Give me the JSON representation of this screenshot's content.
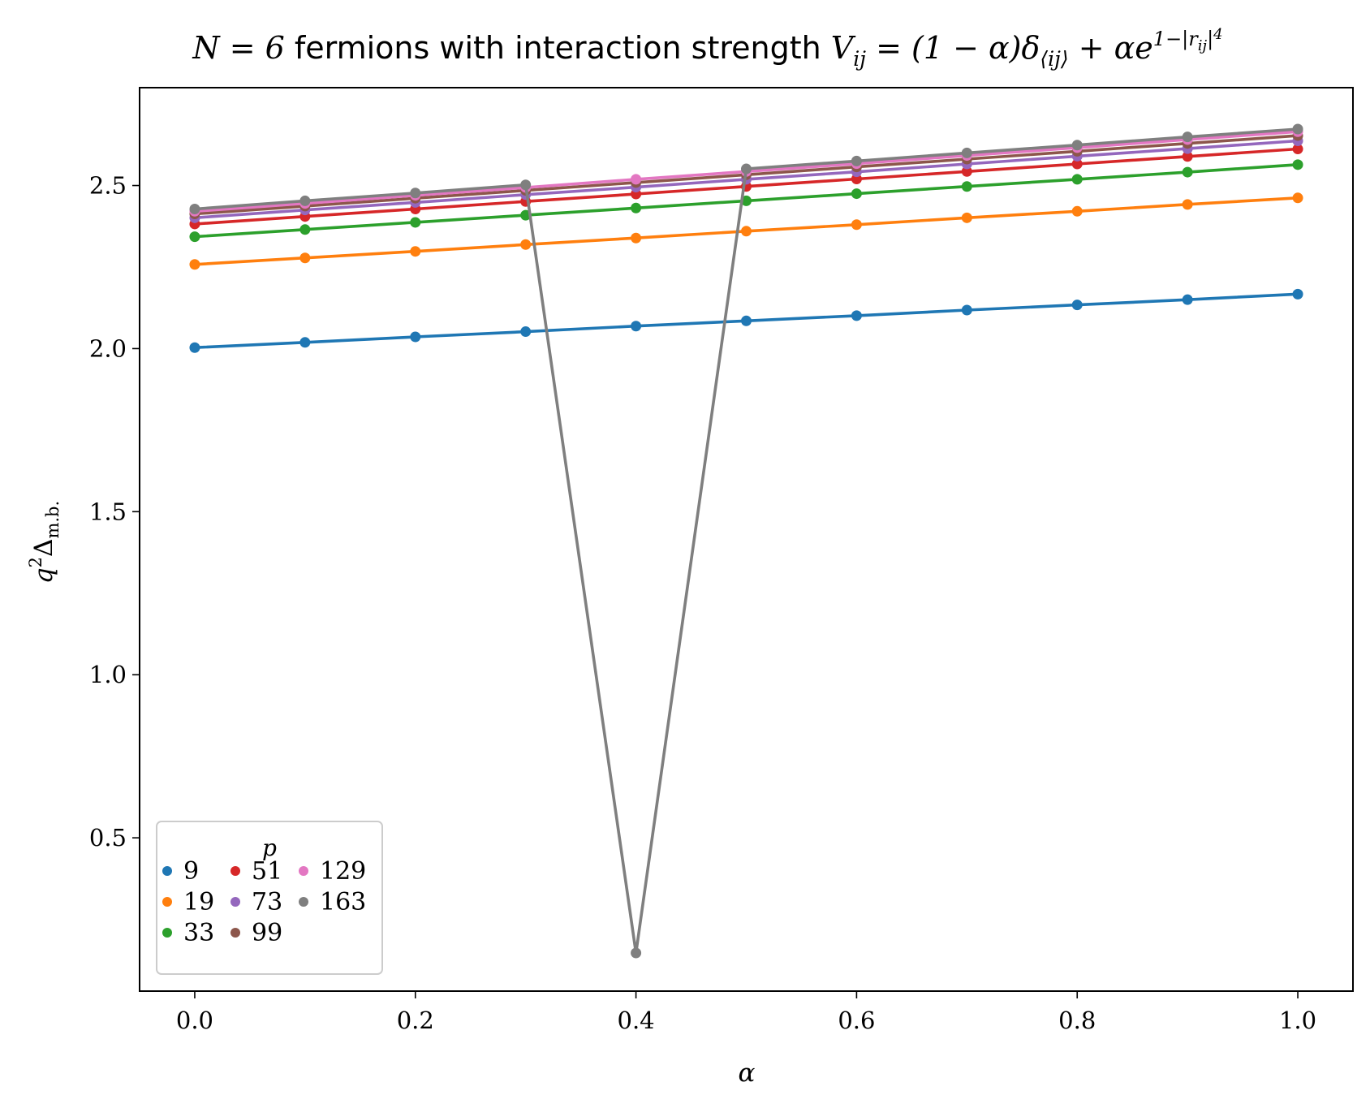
{
  "chart_data": {
    "type": "line",
    "title_parts": [
      "N = 6",
      " fermions with interaction strength ",
      "V",
      "ij",
      " = (1 − α)δ",
      "⟨ij⟩",
      " + αe",
      "1−|r",
      "ij",
      "|",
      "4"
    ],
    "xlabel": "α",
    "ylabel_parts": [
      "q",
      "2",
      "Δ",
      "m.b."
    ],
    "xlim": [
      -0.05,
      1.05
    ],
    "ylim": [
      0.03,
      2.8
    ],
    "xticks": [
      0.0,
      0.2,
      0.4,
      0.6,
      0.8,
      1.0
    ],
    "xtick_labels": [
      "0.0",
      "0.2",
      "0.4",
      "0.6",
      "0.8",
      "1.0"
    ],
    "yticks": [
      0.5,
      1.0,
      1.5,
      2.0,
      2.5
    ],
    "ytick_labels": [
      "0.5",
      "1.0",
      "1.5",
      "2.0",
      "2.5"
    ],
    "grid": false,
    "legend_title": "p",
    "legend_placement": "lower-left",
    "x": [
      0.0,
      0.1,
      0.2,
      0.3,
      0.4,
      0.5,
      0.6,
      0.7,
      0.8,
      0.9,
      1.0
    ],
    "series": [
      {
        "name": "9",
        "color": "#1f77b4",
        "values": [
          2.003,
          2.019,
          2.036,
          2.052,
          2.069,
          2.085,
          2.101,
          2.118,
          2.134,
          2.15,
          2.167
        ]
      },
      {
        "name": "19",
        "color": "#ff7f0e",
        "values": [
          2.258,
          2.278,
          2.298,
          2.319,
          2.339,
          2.36,
          2.38,
          2.401,
          2.421,
          2.442,
          2.462
        ]
      },
      {
        "name": "33",
        "color": "#2ca02c",
        "values": [
          2.343,
          2.365,
          2.387,
          2.409,
          2.431,
          2.453,
          2.475,
          2.497,
          2.519,
          2.541,
          2.564
        ]
      },
      {
        "name": "51",
        "color": "#d62728",
        "values": [
          2.382,
          2.405,
          2.428,
          2.451,
          2.474,
          2.497,
          2.52,
          2.543,
          2.566,
          2.589,
          2.612
        ]
      },
      {
        "name": "73",
        "color": "#9467bd",
        "values": [
          2.401,
          2.425,
          2.448,
          2.472,
          2.495,
          2.519,
          2.542,
          2.566,
          2.59,
          2.613,
          2.637
        ]
      },
      {
        "name": "99",
        "color": "#8c564b",
        "values": [
          2.413,
          2.437,
          2.461,
          2.485,
          2.509,
          2.533,
          2.557,
          2.581,
          2.605,
          2.629,
          2.653
        ]
      },
      {
        "name": "129",
        "color": "#e377c2",
        "values": [
          2.421,
          2.445,
          2.47,
          2.494,
          2.519,
          2.543,
          2.567,
          2.592,
          2.616,
          2.641,
          2.665
        ]
      },
      {
        "name": "163",
        "color": "#7f7f7f",
        "values": [
          2.428,
          2.453,
          2.477,
          2.502,
          0.147,
          2.551,
          2.575,
          2.6,
          2.624,
          2.649,
          2.673
        ]
      }
    ]
  }
}
